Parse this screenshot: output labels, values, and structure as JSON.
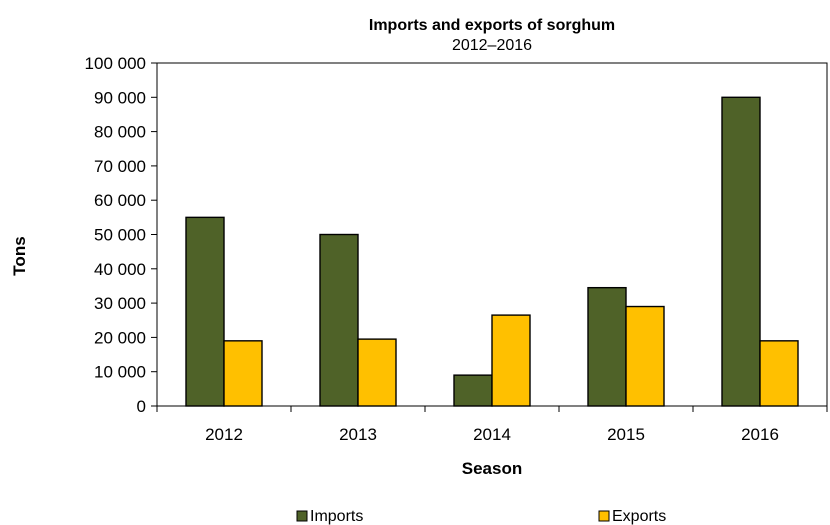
{
  "chart_data": {
    "type": "bar",
    "title": "Imports and exports of sorghum",
    "subtitle": "2012–2016",
    "xlabel": "Season",
    "ylabel": "Tons",
    "categories": [
      "2012",
      "2013",
      "2014",
      "2015",
      "2016"
    ],
    "series": [
      {
        "name": "Imports",
        "color": "#4f6228",
        "values": [
          55000,
          50000,
          9000,
          34500,
          90000
        ]
      },
      {
        "name": "Exports",
        "color": "#ffc000",
        "values": [
          19000,
          19500,
          26500,
          29000,
          19000
        ]
      }
    ],
    "ylim": [
      0,
      100000
    ],
    "yticks": [
      0,
      10000,
      20000,
      30000,
      40000,
      50000,
      60000,
      70000,
      80000,
      90000,
      100000
    ],
    "ytick_labels": [
      "0",
      "10 000",
      "20 000",
      "30 000",
      "40 000",
      "50 000",
      "60 000",
      "70 000",
      "80 000",
      "90 000",
      "100 000"
    ],
    "grid": false,
    "legend_position": "bottom"
  }
}
